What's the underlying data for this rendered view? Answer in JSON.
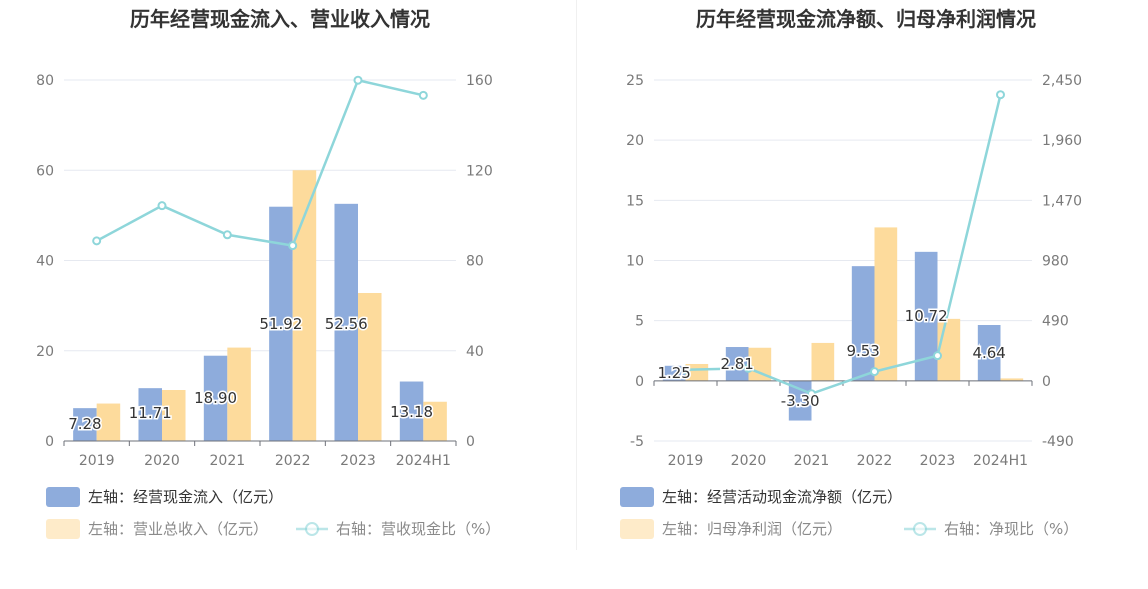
{
  "chart_data": [
    {
      "type": "bar",
      "title": "历年经营现金流入、营业收入情况",
      "categories": [
        "2019",
        "2020",
        "2021",
        "2022",
        "2023",
        "2024H1"
      ],
      "left_axis": {
        "min": 0,
        "max": 80,
        "ticks": [
          "0",
          "20",
          "40",
          "60",
          "80"
        ],
        "tick_values": [
          0,
          20,
          40,
          60,
          80
        ]
      },
      "right_axis": {
        "min": 0,
        "max": 160,
        "ticks": [
          "0",
          "40",
          "80",
          "120",
          "160"
        ],
        "tick_values": [
          0,
          40,
          80,
          120,
          160
        ]
      },
      "series": [
        {
          "name": "左轴：经营现金流入（亿元）",
          "kind": "bar",
          "axis": "left",
          "color": "#8eacdc",
          "values": [
            7.28,
            11.71,
            18.9,
            51.92,
            52.56,
            13.18
          ],
          "labels": [
            "7.28",
            "11.71",
            "18.90",
            "51.92",
            "52.56",
            "13.18"
          ]
        },
        {
          "name": "左轴：营业总收入（亿元）",
          "kind": "bar",
          "axis": "left",
          "color": "#fddb9c",
          "values": [
            8.3,
            11.3,
            20.7,
            60.0,
            32.8,
            8.7
          ]
        },
        {
          "name": "右轴：营收现金比（%）",
          "kind": "line",
          "axis": "right",
          "color": "#8ed6da",
          "values": [
            88.7,
            104.3,
            91.4,
            86.6,
            159.9,
            153.2
          ]
        }
      ],
      "grid": true
    },
    {
      "type": "bar",
      "title": "历年经营现金流净额、归母净利润情况",
      "categories": [
        "2019",
        "2020",
        "2021",
        "2022",
        "2023",
        "2024H1"
      ],
      "left_axis": {
        "min": -5,
        "max": 25,
        "ticks": [
          "-5",
          "0",
          "5",
          "10",
          "15",
          "20",
          "25"
        ],
        "tick_values": [
          -5,
          0,
          5,
          10,
          15,
          20,
          25
        ]
      },
      "right_axis": {
        "min": -490,
        "max": 2450,
        "ticks": [
          "-490",
          "0",
          "490",
          "980",
          "1,470",
          "1,960",
          "2,450"
        ],
        "tick_values": [
          -490,
          0,
          490,
          980,
          1470,
          1960,
          2450
        ]
      },
      "series": [
        {
          "name": "左轴：经营活动现金流净额（亿元）",
          "kind": "bar",
          "axis": "left",
          "color": "#8eacdc",
          "values": [
            1.25,
            2.81,
            -3.3,
            9.53,
            10.72,
            4.64
          ],
          "labels": [
            "1.25",
            "2.81",
            "-3.30",
            "9.53",
            "10.72",
            "4.64"
          ]
        },
        {
          "name": "左轴：归母净利润（亿元）",
          "kind": "bar",
          "axis": "left",
          "color": "#fddb9c",
          "values": [
            1.4,
            2.75,
            3.15,
            12.75,
            5.15,
            0.2
          ]
        },
        {
          "name": "右轴：净现比（%）",
          "kind": "line",
          "axis": "right",
          "color": "#8ed6da",
          "values": [
            90,
            102,
            -105,
            75,
            205,
            2330
          ]
        }
      ],
      "grid": true
    }
  ]
}
